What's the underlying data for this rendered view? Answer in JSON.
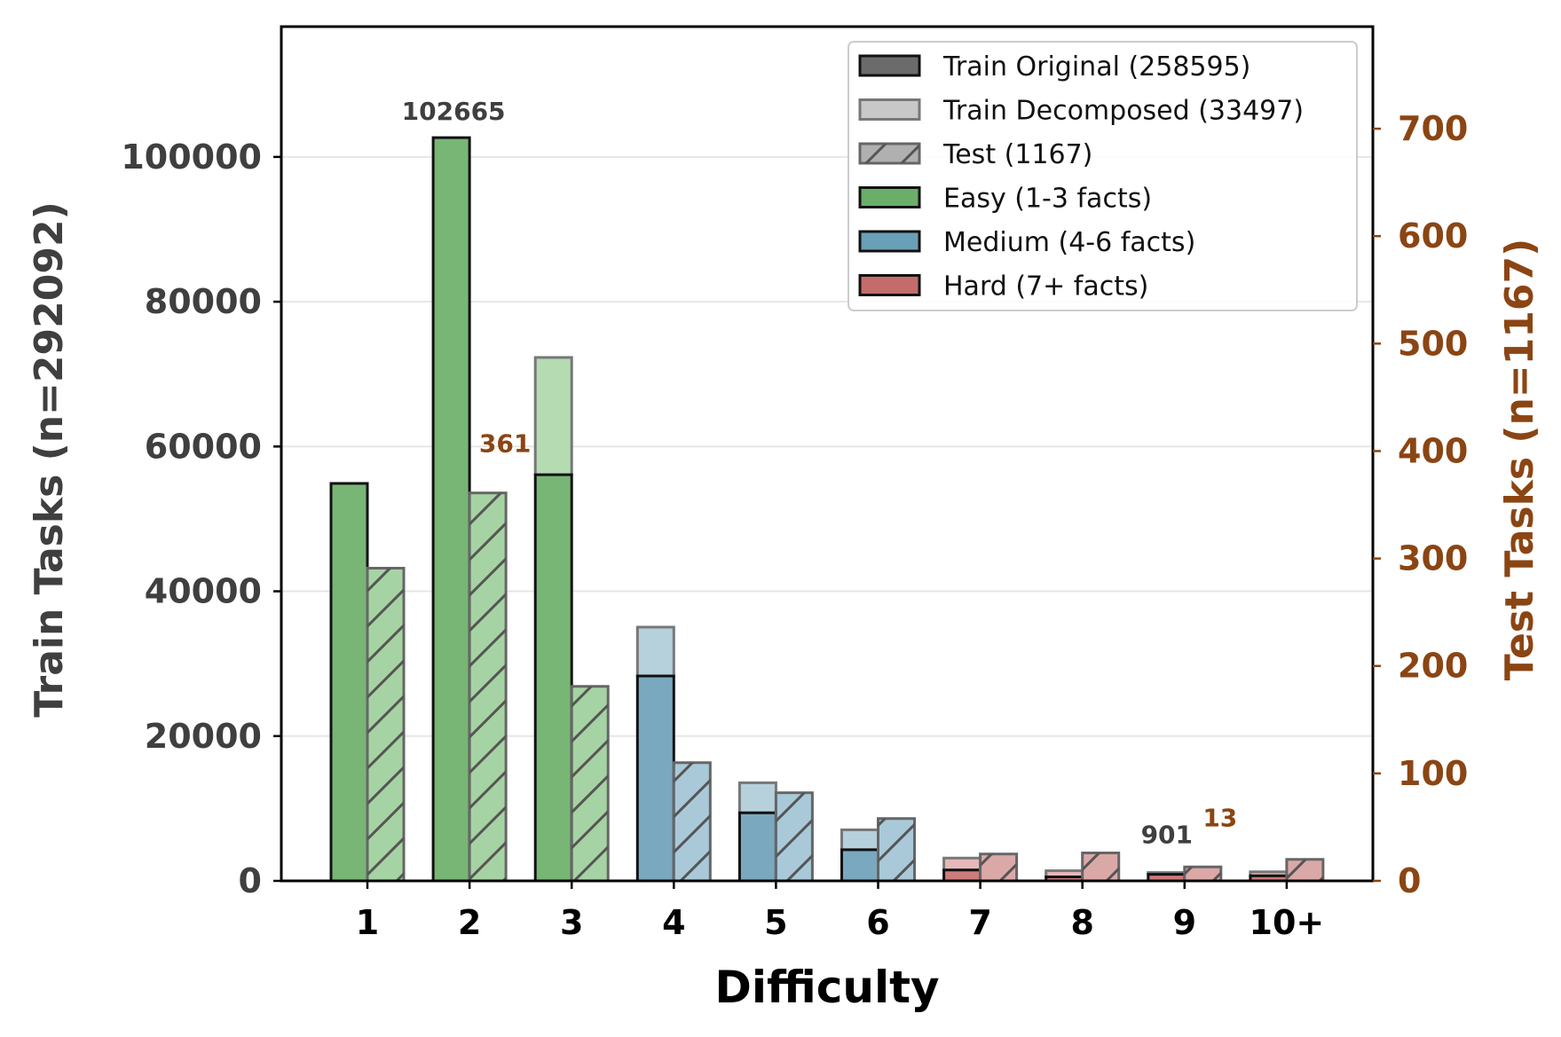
{
  "chart_data": {
    "type": "bar",
    "xlabel": "Difficulty",
    "ylabel_left": "Train Tasks (n=292092)",
    "ylabel_right": "Test Tasks (n=1167)",
    "categories": [
      "1",
      "2",
      "3",
      "4",
      "5",
      "6",
      "7",
      "8",
      "9",
      "10+"
    ],
    "difficulty_group": [
      "easy",
      "easy",
      "easy",
      "medium",
      "medium",
      "medium",
      "hard",
      "hard",
      "hard",
      "hard"
    ],
    "series": [
      {
        "name": "Train Original (258595)",
        "axis": "left",
        "values": [
          54900,
          102665,
          56100,
          28300,
          9400,
          4300,
          1500,
          550,
          901,
          700
        ]
      },
      {
        "name": "Train Decomposed (33497)",
        "axis": "left",
        "stacked_on": "Train Original (258595)",
        "values": [
          0,
          0,
          16200,
          6750,
          4150,
          2750,
          1650,
          850,
          250,
          550
        ]
      },
      {
        "name": "Test (1167)",
        "axis": "right",
        "hatched": true,
        "values": [
          291,
          361,
          181,
          110,
          82,
          58,
          25,
          26,
          13,
          20
        ]
      }
    ],
    "legend": [
      "Train Original (258595)",
      "Train Decomposed (33497)",
      "Test (1167)",
      "Easy (1-3 facts)",
      "Medium (4-6 facts)",
      "Hard (7+ facts)"
    ],
    "legend_position": "top-right",
    "annotations": [
      {
        "text": "102665",
        "category": "2",
        "axis": "left"
      },
      {
        "text": "361",
        "category": "2",
        "axis": "right"
      },
      {
        "text": "901",
        "category": "9",
        "axis": "left"
      },
      {
        "text": "13",
        "category": "9",
        "axis": "right"
      }
    ],
    "yticks_left": [
      "0",
      "20000",
      "40000",
      "60000",
      "80000",
      "100000"
    ],
    "yticks_right": [
      "0",
      "100",
      "200",
      "300",
      "400",
      "500",
      "600",
      "700"
    ],
    "ylim_left": [
      0,
      118000
    ],
    "ylim_right": [
      0,
      795
    ],
    "grid": "horizontal",
    "colors": {
      "easy": "#78b675",
      "easy_light": "#b5dbb2",
      "easy_test": "#a6d3a3",
      "medium": "#7aa9bf",
      "medium_light": "#b6d0dc",
      "medium_test": "#a9c9d9",
      "hard": "#cd7b7b",
      "hard_light": "#e6b8b8",
      "hard_test": "#dba8a8",
      "right_axis": "#8b4513",
      "left_axis": "#3f3f3f"
    }
  }
}
